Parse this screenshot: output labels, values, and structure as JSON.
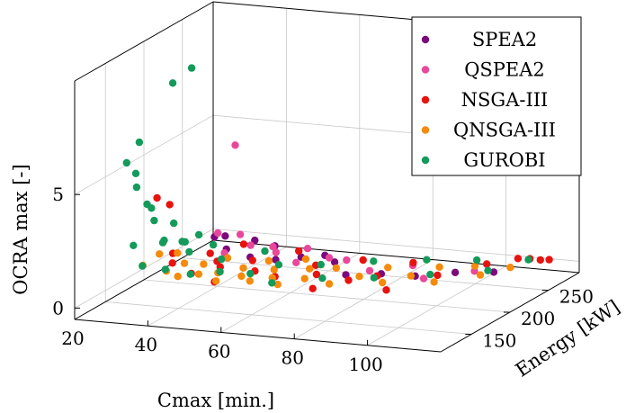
{
  "chart_data": {
    "type": "scatter",
    "projection": "3d",
    "xlabel": "Cmax [min.]",
    "ylabel": "Energy [kW]",
    "zlabel": "OCRA max [-]",
    "x_ticks": [
      "20",
      "40",
      "60",
      "80",
      "100"
    ],
    "y_ticks": [
      "150",
      "200",
      "250"
    ],
    "z_ticks": [
      "0",
      "5"
    ],
    "xlim": [
      20,
      120
    ],
    "ylim": [
      110,
      290
    ],
    "zlim": [
      -0.5,
      10
    ],
    "grid": true,
    "legend_position": "top-right",
    "series": [
      {
        "name": "SPEA2",
        "color": "#7b0a7d",
        "points": [
          [
            34,
            225,
            1.1
          ],
          [
            38,
            220,
            1.3
          ],
          [
            40,
            212,
            0.9
          ],
          [
            44,
            230,
            1.0
          ],
          [
            48,
            205,
            0.8
          ],
          [
            52,
            218,
            1.1
          ],
          [
            56,
            200,
            0.9
          ],
          [
            60,
            214,
            0.8
          ],
          [
            64,
            226,
            0.7
          ],
          [
            70,
            210,
            0.8
          ],
          [
            76,
            196,
            0.6
          ],
          [
            84,
            204,
            0.6
          ],
          [
            92,
            210,
            0.5
          ],
          [
            100,
            224,
            0.5
          ],
          [
            108,
            236,
            0.4
          ]
        ]
      },
      {
        "name": "QSPEA2",
        "color": "#e8489a",
        "points": [
          [
            46,
            195,
            5.9
          ],
          [
            36,
            220,
            1.4
          ],
          [
            40,
            230,
            1.2
          ],
          [
            42,
            200,
            1.0
          ],
          [
            46,
            215,
            1.1
          ],
          [
            50,
            225,
            0.9
          ],
          [
            54,
            210,
            1.0
          ],
          [
            58,
            232,
            0.8
          ],
          [
            62,
            198,
            0.9
          ],
          [
            66,
            222,
            0.7
          ],
          [
            72,
            216,
            0.8
          ],
          [
            80,
            208,
            0.6
          ],
          [
            88,
            226,
            0.6
          ],
          [
            96,
            202,
            0.6
          ],
          [
            104,
            230,
            0.5
          ]
        ]
      },
      {
        "name": "NSGA-III",
        "color": "#e8120e",
        "points": [
          [
            24,
            198,
            3.2
          ],
          [
            26,
            205,
            2.8
          ],
          [
            30,
            190,
            1.0
          ],
          [
            32,
            180,
            0.8
          ],
          [
            36,
            210,
            0.7
          ],
          [
            38,
            176,
            0.5
          ],
          [
            40,
            200,
            0.6
          ],
          [
            42,
            225,
            0.9
          ],
          [
            44,
            185,
            0.7
          ],
          [
            46,
            168,
            0.4
          ],
          [
            48,
            208,
            0.6
          ],
          [
            52,
            192,
            0.5
          ],
          [
            56,
            230,
            0.7
          ],
          [
            60,
            180,
            0.6
          ],
          [
            64,
            214,
            0.5
          ],
          [
            68,
            196,
            0.5
          ],
          [
            72,
            172,
            0.4
          ],
          [
            74,
            228,
            0.6
          ],
          [
            78,
            190,
            0.5
          ],
          [
            82,
            208,
            0.4
          ],
          [
            86,
            236,
            0.5
          ],
          [
            90,
            182,
            0.4
          ],
          [
            96,
            220,
            0.4
          ],
          [
            104,
            246,
            0.5
          ],
          [
            110,
            258,
            0.6
          ],
          [
            112,
            264,
            0.5
          ],
          [
            114,
            268,
            0.4
          ],
          [
            116,
            270,
            0.4
          ]
        ]
      },
      {
        "name": "QNSGA-III",
        "color": "#f58a0b",
        "points": [
          [
            26,
            170,
            0.8
          ],
          [
            28,
            182,
            1.1
          ],
          [
            30,
            196,
            0.9
          ],
          [
            32,
            172,
            0.6
          ],
          [
            34,
            186,
            0.7
          ],
          [
            36,
            168,
            0.5
          ],
          [
            38,
            192,
            0.6
          ],
          [
            40,
            176,
            0.5
          ],
          [
            42,
            204,
            0.7
          ],
          [
            44,
            182,
            0.5
          ],
          [
            46,
            170,
            0.4
          ],
          [
            48,
            196,
            0.5
          ],
          [
            50,
            184,
            0.4
          ],
          [
            52,
            210,
            0.6
          ],
          [
            54,
            176,
            0.4
          ],
          [
            56,
            198,
            0.5
          ],
          [
            58,
            186,
            0.4
          ],
          [
            60,
            220,
            0.6
          ],
          [
            62,
            174,
            0.4
          ],
          [
            64,
            206,
            0.5
          ],
          [
            66,
            190,
            0.4
          ],
          [
            70,
            212,
            0.5
          ],
          [
            74,
            184,
            0.4
          ],
          [
            78,
            204,
            0.4
          ],
          [
            82,
            222,
            0.5
          ],
          [
            86,
            196,
            0.4
          ],
          [
            90,
            214,
            0.4
          ],
          [
            94,
            232,
            0.5
          ],
          [
            98,
            206,
            0.4
          ],
          [
            102,
            240,
            0.5
          ],
          [
            106,
            228,
            0.4
          ],
          [
            110,
            248,
            0.4
          ]
        ]
      },
      {
        "name": "GUROBI",
        "color": "#149a5a",
        "points": [
          [
            22,
            168,
            5.3
          ],
          [
            22,
            180,
            4.6
          ],
          [
            24,
            175,
            6.1
          ],
          [
            26,
            162,
            4.4
          ],
          [
            28,
            166,
            3.6
          ],
          [
            30,
            190,
            8.5
          ],
          [
            32,
            205,
            8.9
          ],
          [
            25,
            186,
            3.0
          ],
          [
            27,
            180,
            2.6
          ],
          [
            29,
            196,
            2.2
          ],
          [
            31,
            174,
            1.9
          ],
          [
            33,
            188,
            1.6
          ],
          [
            35,
            200,
            1.7
          ],
          [
            37,
            178,
            1.4
          ],
          [
            23,
            172,
            1.6
          ],
          [
            26,
            196,
            1.3
          ],
          [
            28,
            160,
            1.0
          ],
          [
            30,
            206,
            1.2
          ],
          [
            33,
            166,
            0.8
          ],
          [
            36,
            214,
            1.0
          ],
          [
            39,
            170,
            0.6
          ],
          [
            42,
            196,
            0.8
          ],
          [
            45,
            180,
            0.6
          ],
          [
            48,
            224,
            0.7
          ],
          [
            52,
            186,
            0.5
          ],
          [
            56,
            204,
            0.6
          ],
          [
            60,
            176,
            0.4
          ],
          [
            65,
            216,
            0.5
          ],
          [
            70,
            194,
            0.4
          ],
          [
            76,
            232,
            0.5
          ],
          [
            82,
            204,
            0.4
          ],
          [
            88,
            244,
            0.5
          ],
          [
            94,
            220,
            0.4
          ],
          [
            100,
            252,
            0.5
          ],
          [
            106,
            238,
            0.4
          ],
          [
            112,
            262,
            0.5
          ]
        ]
      }
    ]
  }
}
